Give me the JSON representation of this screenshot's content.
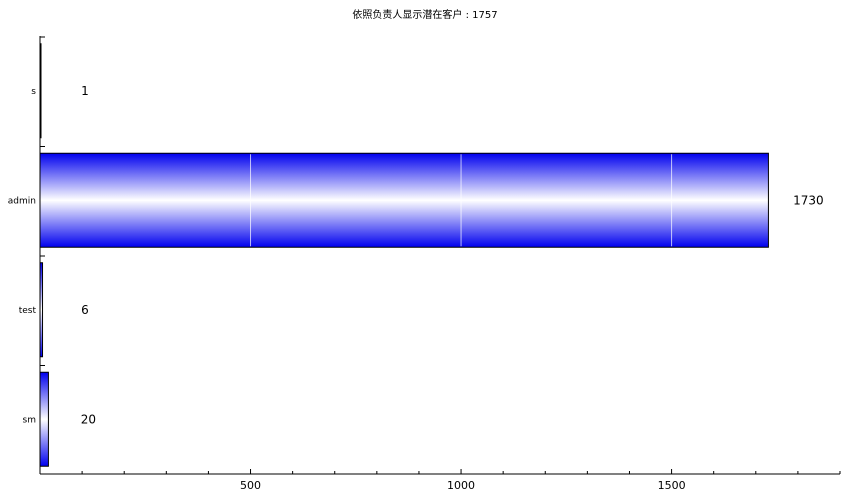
{
  "chart_data": {
    "type": "bar",
    "orientation": "horizontal",
    "title": "依照负责人显示潜在客户 : 1757",
    "categories": [
      "s",
      "admin",
      "test",
      "sm"
    ],
    "values": [
      1,
      1730,
      6,
      20
    ],
    "data_labels": [
      "1",
      "1730",
      "6",
      "20"
    ],
    "xlim": [
      0,
      1900
    ],
    "x_ticks": [
      500,
      1000,
      1500
    ],
    "x_tick_labels": [
      "500",
      "1000",
      "1500"
    ],
    "bar_gradient": {
      "edge": "#0000ee",
      "center": "#ffffff"
    },
    "grid": false,
    "legend": "none"
  }
}
